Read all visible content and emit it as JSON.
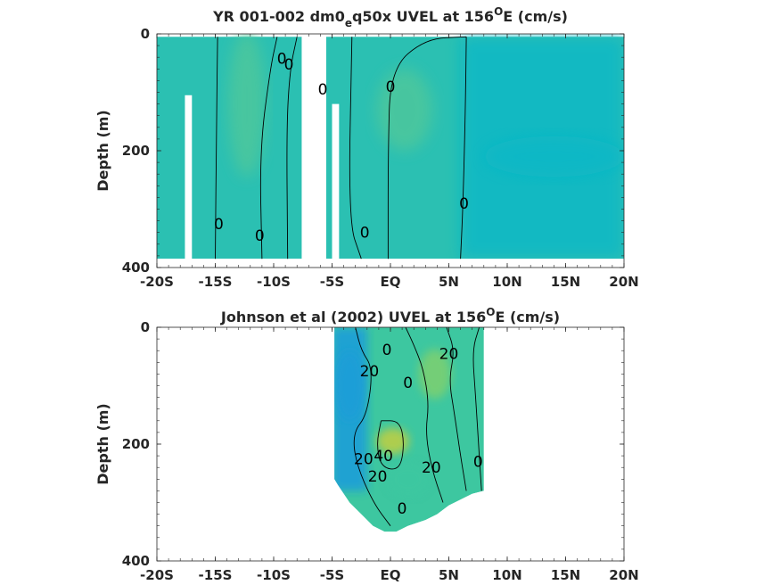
{
  "chart_data": [
    {
      "type": "heatmap",
      "title_main": "YR 001-002 dm0",
      "title_sub": "e",
      "title_rest": "q50x UVEL at 156",
      "title_sup": "O",
      "title_end": "E (cm/s)",
      "xlabel": "",
      "ylabel": "Depth (m)",
      "xlim": [
        -20,
        20
      ],
      "ylim": [
        400,
        0
      ],
      "y_reversed": true,
      "x_ticks": [
        -20,
        -15,
        -10,
        -5,
        0,
        5,
        10,
        15,
        20
      ],
      "x_tick_labels": [
        "-20S",
        "-15S",
        "-10S",
        "-5S",
        "EQ",
        "5N",
        "10N",
        "15N",
        "20N"
      ],
      "y_ticks": [
        0,
        200,
        400
      ],
      "y_tick_labels": [
        "0",
        "200",
        "400"
      ],
      "colors": [
        "#0ab8c6",
        "#2bc0b2",
        "#4ec79c",
        "#86cf6e",
        "#bcd04a"
      ],
      "data_extent": {
        "x": [
          -20,
          20
        ],
        "depth": [
          5,
          385
        ]
      },
      "missing_columns": [
        {
          "x": [
            -17.6,
            -17.0
          ],
          "depth": [
            105,
            400
          ]
        },
        {
          "x": [
            -7.6,
            -5.5
          ],
          "depth": [
            0,
            400
          ]
        },
        {
          "x": [
            -5.0,
            -4.4
          ],
          "depth": [
            120,
            400
          ]
        }
      ],
      "features": [
        {
          "x": -12.3,
          "depth": 120,
          "sx": 1.6,
          "sy": 250,
          "value": 18
        },
        {
          "x": 1.2,
          "depth": 130,
          "sx": 2.4,
          "sy": 140,
          "value": 14
        },
        {
          "x": 14.0,
          "depth": 210,
          "sx": 6.0,
          "sy": 70,
          "value": -4
        }
      ],
      "contour_labels": [
        {
          "text": "0",
          "x": -9.3,
          "depth": 42
        },
        {
          "text": "0",
          "x": -8.7,
          "depth": 52
        },
        {
          "text": "0",
          "x": -5.8,
          "depth": 95
        },
        {
          "text": "0",
          "x": 0.0,
          "depth": 90
        },
        {
          "text": "0",
          "x": -14.7,
          "depth": 325
        },
        {
          "text": "0",
          "x": -11.2,
          "depth": 345
        },
        {
          "text": "0",
          "x": -2.2,
          "depth": 340
        },
        {
          "text": "0",
          "x": 6.3,
          "depth": 290
        }
      ],
      "contours": [
        [
          [
            -14.8,
            5
          ],
          [
            -14.9,
            150
          ],
          [
            -15.0,
            385
          ]
        ],
        [
          [
            -9.7,
            5
          ],
          [
            -10.3,
            60
          ],
          [
            -11.2,
            200
          ],
          [
            -11.0,
            385
          ]
        ],
        [
          [
            -8.0,
            5
          ],
          [
            -8.6,
            60
          ],
          [
            -8.9,
            160
          ],
          [
            -8.8,
            385
          ]
        ],
        [
          [
            -3.3,
            5
          ],
          [
            -3.6,
            320
          ],
          [
            -2.5,
            385
          ]
        ],
        [
          [
            6.5,
            5
          ],
          [
            3.0,
            8
          ],
          [
            0.0,
            60
          ],
          [
            -0.2,
            200
          ],
          [
            -0.2,
            385
          ]
        ],
        [
          [
            6.5,
            5
          ],
          [
            6.4,
            150
          ],
          [
            6.2,
            300
          ],
          [
            6.0,
            385
          ]
        ]
      ]
    },
    {
      "type": "heatmap",
      "title_main": "Johnson et al (2002) UVEL at 156",
      "title_sup": "O",
      "title_end": "E (cm/s)",
      "xlabel": "",
      "ylabel": "Depth (m)",
      "xlim": [
        -20,
        20
      ],
      "ylim": [
        400,
        0
      ],
      "y_reversed": true,
      "x_ticks": [
        -20,
        -15,
        -10,
        -5,
        0,
        5,
        10,
        15,
        20
      ],
      "x_tick_labels": [
        "-20S",
        "-15S",
        "-10S",
        "-5S",
        "EQ",
        "5N",
        "10N",
        "15N",
        "20N"
      ],
      "y_ticks": [
        0,
        200,
        400
      ],
      "y_tick_labels": [
        "0",
        "200",
        "400"
      ],
      "colors": [
        "#1a9ed8",
        "#12b9c4",
        "#3dc7a0",
        "#7ed070",
        "#c2cf3f"
      ],
      "data_polygon": [
        [
          -4.8,
          0
        ],
        [
          8.0,
          0
        ],
        [
          8.0,
          280
        ],
        [
          7.0,
          285
        ],
        [
          5.0,
          305
        ],
        [
          4.0,
          320
        ],
        [
          3.0,
          330
        ],
        [
          1.5,
          340
        ],
        [
          0.5,
          350
        ],
        [
          -0.5,
          350
        ],
        [
          -1.5,
          340
        ],
        [
          -2.5,
          320
        ],
        [
          -3.5,
          300
        ],
        [
          -4.5,
          270
        ],
        [
          -4.8,
          260
        ]
      ],
      "features": [
        {
          "x": 0.2,
          "depth": 195,
          "sx": 1.4,
          "sy": 45,
          "value": 40
        },
        {
          "x": 3.8,
          "depth": 80,
          "sx": 1.4,
          "sy": 85,
          "value": 22
        },
        {
          "x": 1.5,
          "depth": 260,
          "sx": 1.8,
          "sy": 60,
          "value": 18
        },
        {
          "x": -3.5,
          "depth": 100,
          "sx": 1.3,
          "sy": 120,
          "value": -8
        }
      ],
      "contour_labels": [
        {
          "text": "0",
          "x": -0.3,
          "depth": 38
        },
        {
          "text": "20",
          "x": -1.8,
          "depth": 75
        },
        {
          "text": "0",
          "x": 1.5,
          "depth": 95
        },
        {
          "text": "20",
          "x": 5.0,
          "depth": 45
        },
        {
          "text": "40",
          "x": -0.6,
          "depth": 220
        },
        {
          "text": "20",
          "x": -2.3,
          "depth": 225
        },
        {
          "text": "20",
          "x": -1.1,
          "depth": 255
        },
        {
          "text": "20",
          "x": 3.5,
          "depth": 240
        },
        {
          "text": "0",
          "x": 7.5,
          "depth": 230
        },
        {
          "text": "0",
          "x": 1.0,
          "depth": 310
        }
      ],
      "contours": [
        [
          [
            -3.0,
            0
          ],
          [
            -2.5,
            40
          ],
          [
            -1.5,
            70
          ],
          [
            -2.0,
            150
          ],
          [
            -3.2,
            180
          ],
          [
            -3.0,
            230
          ],
          [
            -1.5,
            300
          ],
          [
            0.0,
            340
          ]
        ],
        [
          [
            1.3,
            0
          ],
          [
            2.0,
            30
          ],
          [
            2.8,
            70
          ],
          [
            3.3,
            130
          ],
          [
            3.0,
            180
          ],
          [
            3.5,
            240
          ],
          [
            4.5,
            300
          ]
        ],
        [
          [
            4.8,
            0
          ],
          [
            5.5,
            40
          ],
          [
            5.0,
            90
          ],
          [
            5.5,
            150
          ],
          [
            6.0,
            220
          ],
          [
            6.5,
            280
          ]
        ],
        [
          [
            7.6,
            0
          ],
          [
            7.0,
            40
          ],
          [
            7.3,
            120
          ],
          [
            7.6,
            220
          ],
          [
            7.8,
            280
          ]
        ],
        [
          [
            -0.8,
            160
          ],
          [
            0.8,
            160
          ],
          [
            1.2,
            200
          ],
          [
            0.8,
            245
          ],
          [
            -0.8,
            240
          ],
          [
            -1.2,
            200
          ],
          [
            -0.8,
            160
          ]
        ]
      ]
    }
  ]
}
